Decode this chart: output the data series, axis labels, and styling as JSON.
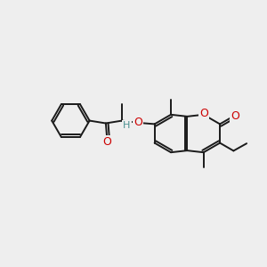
{
  "bg_color": "#eeeeee",
  "bond_color": "#1a1a1a",
  "bond_width": 1.4,
  "o_color": "#cc0000",
  "h_color": "#4a9090",
  "figsize": [
    3.0,
    3.0
  ],
  "dpi": 100,
  "xlim": [
    0,
    10
  ],
  "ylim": [
    0,
    10
  ]
}
